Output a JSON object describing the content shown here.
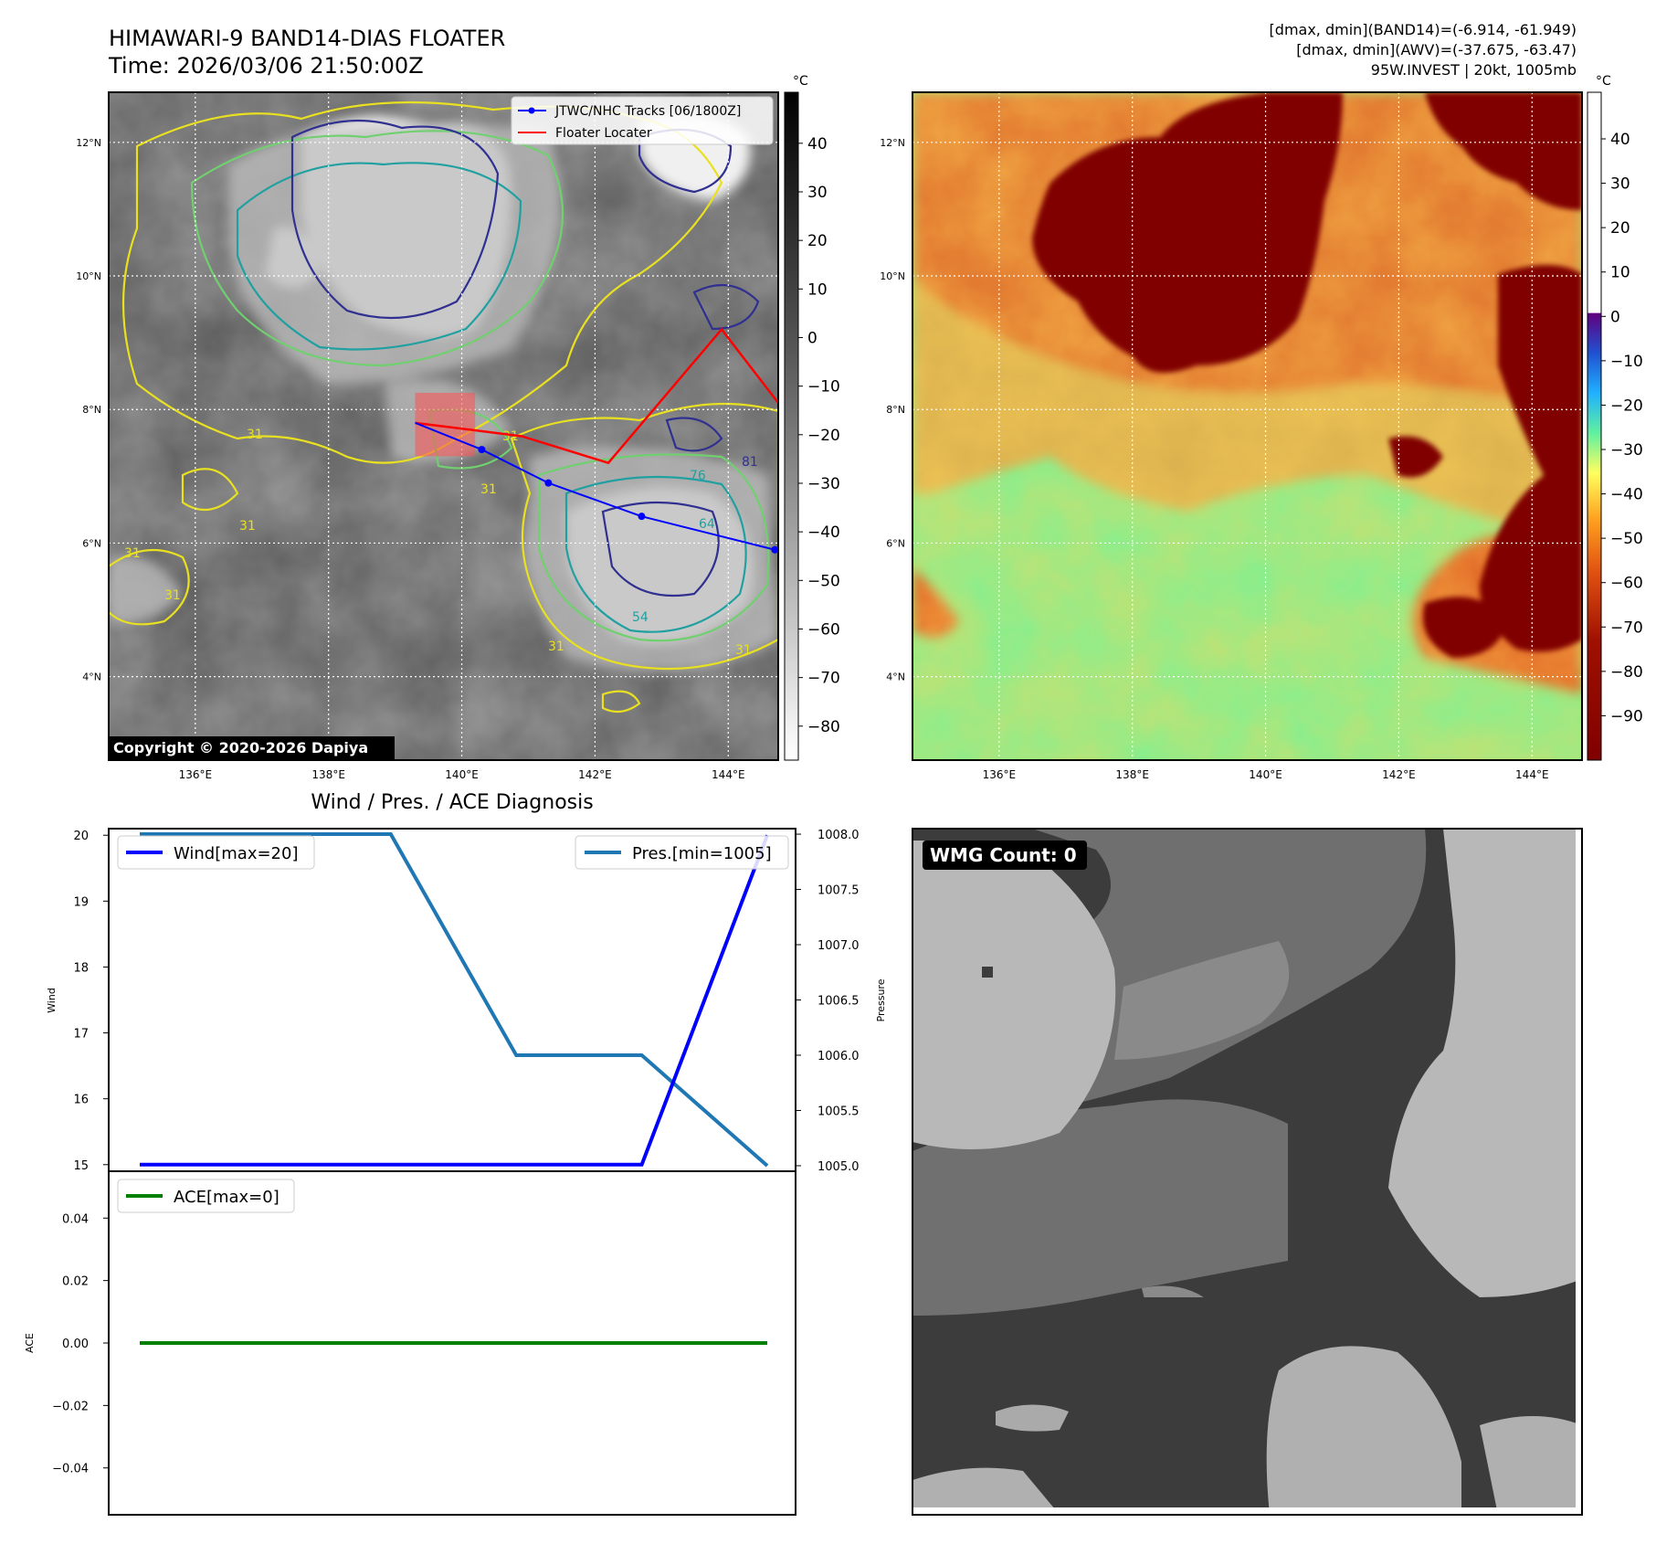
{
  "header": {
    "title": "HIMAWARI-9 BAND14-DIAS FLOATER",
    "time": "Time: 2026/03/06 21:50:00Z",
    "stats_band14": "[dmax, dmin](BAND14)=(-6.914, -61.949)",
    "stats_awv": "[dmax, dmin](AWV)=(-37.675, -63.47)",
    "storm_info": "95W.INVEST | 20kt, 1005mb"
  },
  "maps": {
    "lat_ticks": [
      "4°N",
      "6°N",
      "8°N",
      "10°N",
      "12°N"
    ],
    "lat_values": [
      4,
      6,
      8,
      10,
      12
    ],
    "lon_ticks": [
      "136°E",
      "138°E",
      "140°E",
      "142°E",
      "144°E"
    ],
    "lon_values": [
      136,
      138,
      140,
      142,
      144
    ],
    "lon_range": [
      134.7,
      144.75
    ],
    "lat_range": [
      2.75,
      12.75
    ],
    "copyright": "Copyright © 2020-2026 Dapiya",
    "legend_tracks": "JTWC/NHC Tracks [06/1800Z]",
    "legend_floater": "Floater Locater",
    "contour_labels": [
      "31",
      "31",
      "31",
      "31",
      "31",
      "31",
      "64",
      "76",
      "81",
      "54",
      "31",
      "31"
    ],
    "unit": "°C",
    "gray_colorbar_ticks": [
      40,
      30,
      20,
      10,
      0,
      -10,
      -20,
      -30,
      -40,
      -50,
      -60,
      -70,
      -80
    ],
    "color_colorbar_ticks": [
      40,
      30,
      20,
      10,
      0,
      -10,
      -20,
      -30,
      -40,
      -50,
      -60,
      -70,
      -80,
      -90
    ],
    "track_points": [
      [
        139.3,
        7.8
      ],
      [
        140.3,
        7.4
      ],
      [
        141.3,
        6.9
      ],
      [
        142.7,
        6.4
      ],
      [
        144.7,
        5.9
      ]
    ],
    "floater_path": [
      [
        139.3,
        7.8
      ],
      [
        140.9,
        7.6
      ],
      [
        142.2,
        7.2
      ],
      [
        143.9,
        9.2
      ],
      [
        144.75,
        8.1
      ]
    ],
    "floater_box": [
      [
        139.3,
        8.25
      ],
      [
        140.2,
        7.3
      ]
    ]
  },
  "diagnosis": {
    "title": "Wind / Pres. / ACE Diagnosis",
    "wind_label": "Wind",
    "pressure_label": "Pressure",
    "ace_label": "ACE",
    "legend_wind": "Wind[max=20]",
    "legend_pres": "Pres.[min=1005]",
    "legend_ace": "ACE[max=0]",
    "wmg_count": "WMG Count: 0"
  },
  "chart_data": [
    {
      "type": "line",
      "title": "Wind / Pres. / ACE Diagnosis",
      "ylabel": "Wind",
      "ylim": [
        14.9,
        20.1
      ],
      "yticks": [
        15,
        16,
        17,
        18,
        19,
        20
      ],
      "series": [
        {
          "name": "Wind[max=20]",
          "x": [
            0,
            1,
            2,
            3,
            4,
            5
          ],
          "values": [
            15,
            15,
            15,
            15,
            15,
            20
          ],
          "color": "#0000ff"
        }
      ]
    },
    {
      "type": "line",
      "ylabel": "Pressure",
      "ylim": [
        1004.95,
        1008.05
      ],
      "yticks": [
        "1005.0",
        "1005.5",
        "1006.0",
        "1006.5",
        "1007.0",
        "1007.5",
        "1008.0"
      ],
      "ytick_values": [
        1005.0,
        1005.5,
        1006.0,
        1006.5,
        1007.0,
        1007.5,
        1008.0
      ],
      "series": [
        {
          "name": "Pres.[min=1005]",
          "x": [
            0,
            1,
            2,
            3,
            4,
            5
          ],
          "values": [
            1008,
            1008,
            1008,
            1006,
            1006,
            1005
          ],
          "color": "#1f77b4"
        }
      ]
    },
    {
      "type": "line",
      "ylabel": "ACE",
      "ylim": [
        -0.055,
        0.055
      ],
      "yticks": [
        "0.04",
        "0.02",
        "0.00",
        "−0.02",
        "−0.04"
      ],
      "ytick_values": [
        0.04,
        0.02,
        0.0,
        -0.02,
        -0.04
      ],
      "series": [
        {
          "name": "ACE[max=0]",
          "x": [
            0,
            1,
            2,
            3,
            4,
            5
          ],
          "values": [
            0,
            0,
            0,
            0,
            0,
            0
          ],
          "color": "#008000"
        }
      ]
    }
  ],
  "colors": {
    "wind": "#0000ff",
    "pressure": "#1f77b4",
    "ace": "#008000",
    "track": "#0000ff",
    "floater": "#ff0000",
    "deep_convection": "#800000",
    "clear_sky": "#80f090"
  }
}
